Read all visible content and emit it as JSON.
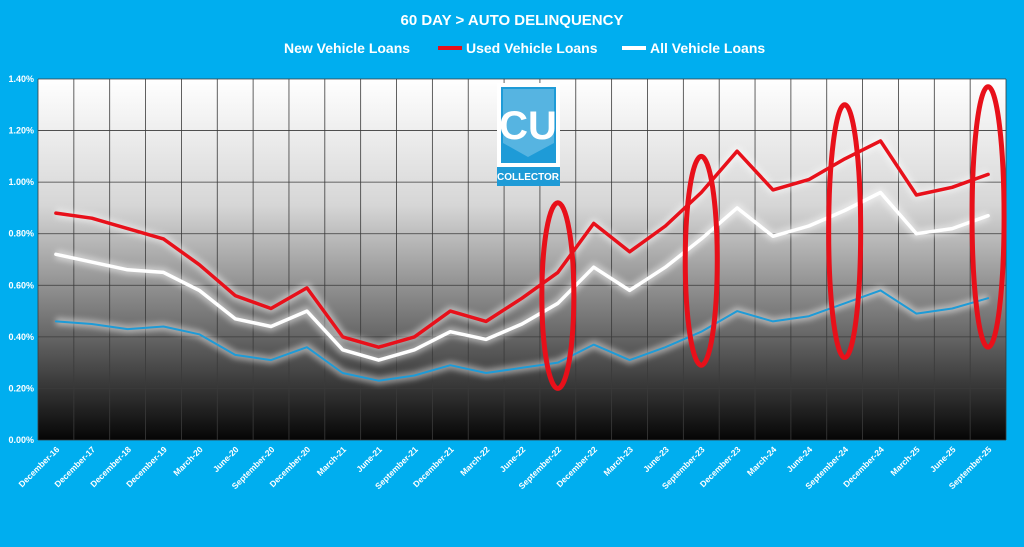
{
  "chart_data": {
    "type": "line",
    "title": "60 DAY > AUTO DELINQUENCY",
    "categories": [
      "December-16",
      "December-17",
      "December-18",
      "December-19",
      "March-20",
      "June-20",
      "September-20",
      "December-20",
      "March-21",
      "June-21",
      "September-21",
      "December-21",
      "March-22",
      "June-22",
      "September-22",
      "December-22",
      "March-23",
      "June-23",
      "September-23",
      "December-23",
      "March-24",
      "June-24",
      "September-24",
      "December-24",
      "March-25",
      "June-25",
      "September-25"
    ],
    "series": [
      {
        "name": "New Vehicle Loans",
        "color": "#1E9BD7",
        "values": [
          0.46,
          0.45,
          0.43,
          0.44,
          0.41,
          0.33,
          0.31,
          0.36,
          0.26,
          0.23,
          0.25,
          0.29,
          0.26,
          0.28,
          0.3,
          0.37,
          0.31,
          0.36,
          0.42,
          0.5,
          0.46,
          0.48,
          0.53,
          0.58,
          0.49,
          0.51,
          0.55
        ]
      },
      {
        "name": "Used Vehicle Loans",
        "color": "#E8101A",
        "values": [
          0.88,
          0.86,
          0.82,
          0.78,
          0.68,
          0.56,
          0.51,
          0.59,
          0.4,
          0.36,
          0.4,
          0.5,
          0.46,
          0.55,
          0.65,
          0.84,
          0.73,
          0.83,
          0.96,
          1.12,
          0.97,
          1.01,
          1.09,
          1.16,
          0.95,
          0.98,
          1.03
        ]
      },
      {
        "name": "All Vehicle Loans",
        "color": "#ffffff",
        "values": [
          0.72,
          0.69,
          0.66,
          0.65,
          0.58,
          0.47,
          0.44,
          0.5,
          0.35,
          0.31,
          0.35,
          0.42,
          0.39,
          0.45,
          0.53,
          0.67,
          0.58,
          0.67,
          0.78,
          0.9,
          0.79,
          0.83,
          0.89,
          0.96,
          0.8,
          0.82,
          0.87
        ]
      }
    ],
    "yticks": [
      "0.00%",
      "0.20%",
      "0.40%",
      "0.60%",
      "0.80%",
      "1.00%",
      "1.20%",
      "1.40%"
    ],
    "ylim": [
      0,
      1.4
    ],
    "grid": true,
    "legend_position": "top",
    "highlights": [
      {
        "category_index": 14,
        "y_min": 0.2,
        "y_max": 0.92
      },
      {
        "category_index": 18,
        "y_min": 0.29,
        "y_max": 1.1
      },
      {
        "category_index": 22,
        "y_min": 0.32,
        "y_max": 1.3
      },
      {
        "category_index": 26,
        "y_min": 0.36,
        "y_max": 1.37
      }
    ],
    "highlight_color": "#E8101A"
  },
  "logo": {
    "letters": "CU",
    "text": "COLLECTOR",
    "color": "#1E9BD7"
  }
}
